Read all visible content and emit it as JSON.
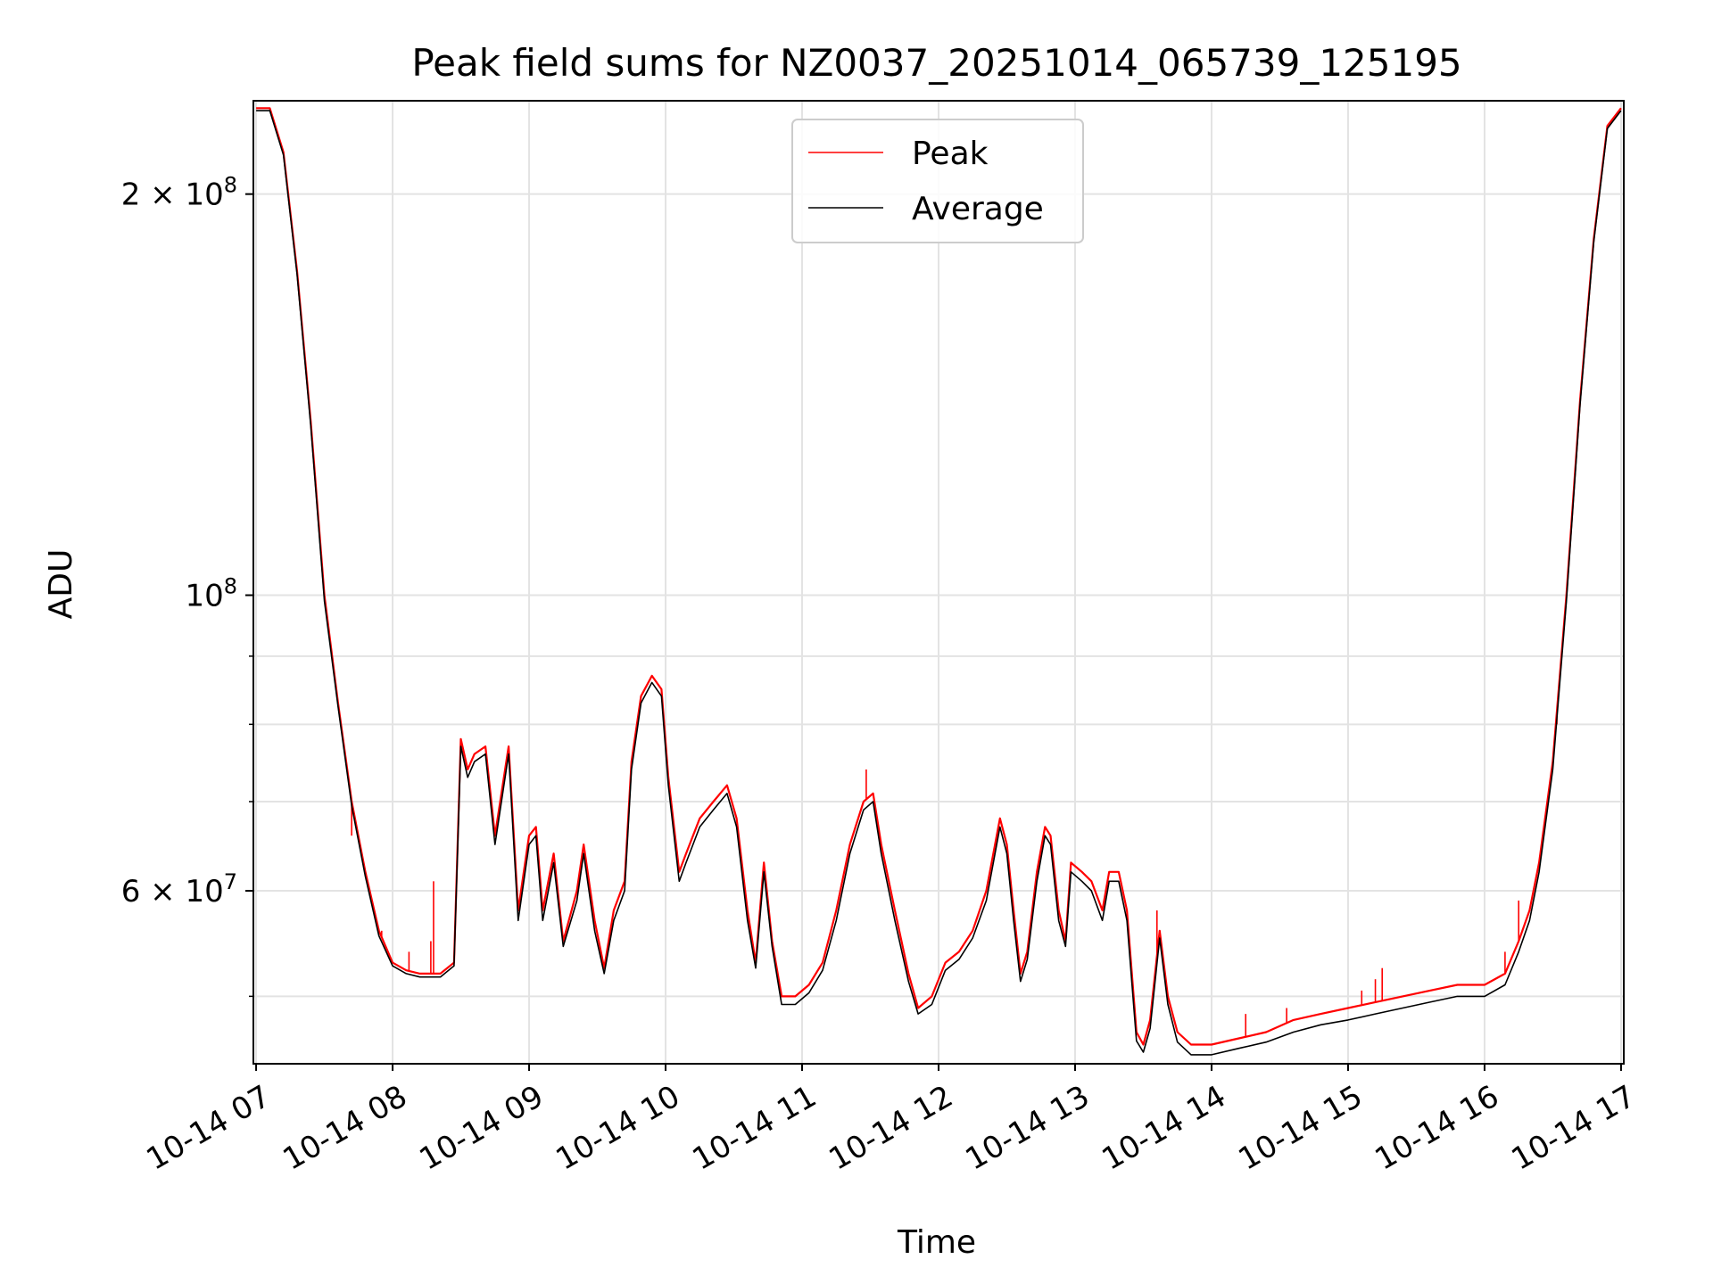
{
  "chart_data": {
    "type": "line",
    "title": "Peak field sums for NZ0037_20251014_065739_125195",
    "xlabel": "Time",
    "ylabel": "ADU",
    "yscale": "log",
    "ylim": [
      44500000,
      235000000
    ],
    "xlim": [
      6.98,
      17.02
    ],
    "grid": true,
    "legend_position": "upper-center",
    "x_ticks": [
      {
        "value": 7,
        "label": "10-14 07"
      },
      {
        "value": 8,
        "label": "10-14 08"
      },
      {
        "value": 9,
        "label": "10-14 09"
      },
      {
        "value": 10,
        "label": "10-14 10"
      },
      {
        "value": 11,
        "label": "10-14 11"
      },
      {
        "value": 12,
        "label": "10-14 12"
      },
      {
        "value": 13,
        "label": "10-14 13"
      },
      {
        "value": 14,
        "label": "10-14 14"
      },
      {
        "value": 15,
        "label": "10-14 15"
      },
      {
        "value": 16,
        "label": "10-14 16"
      },
      {
        "value": 17,
        "label": "10-14 17"
      }
    ],
    "y_major_ticks": [
      {
        "value": 60000000,
        "mant": "6",
        "exp": "7",
        "times": true
      },
      {
        "value": 100000000,
        "mant": "10",
        "exp": "8",
        "times": false
      },
      {
        "value": 200000000,
        "mant": "2",
        "exp": "8",
        "times": true
      }
    ],
    "y_minor_ticks": [
      50000000,
      70000000,
      80000000,
      90000000
    ],
    "times_symbol": "×",
    "series": [
      {
        "name": "Peak",
        "color": "#ff0000",
        "points": [
          [
            7.0,
            232000000
          ],
          [
            7.1,
            232000000
          ],
          [
            7.2,
            215000000
          ],
          [
            7.3,
            175000000
          ],
          [
            7.4,
            135000000
          ],
          [
            7.5,
            100000000
          ],
          [
            7.6,
            83000000
          ],
          [
            7.7,
            70000000
          ],
          [
            7.8,
            62000000
          ],
          [
            7.9,
            56000000
          ],
          [
            8.0,
            53000000
          ],
          [
            8.1,
            52300000
          ],
          [
            8.2,
            52000000
          ],
          [
            8.35,
            52000000
          ],
          [
            8.45,
            53000000
          ],
          [
            8.5,
            78000000
          ],
          [
            8.55,
            74000000
          ],
          [
            8.6,
            76000000
          ],
          [
            8.68,
            77000000
          ],
          [
            8.75,
            66000000
          ],
          [
            8.85,
            77000000
          ],
          [
            8.92,
            58000000
          ],
          [
            9.0,
            66000000
          ],
          [
            9.05,
            67000000
          ],
          [
            9.1,
            58000000
          ],
          [
            9.18,
            64000000
          ],
          [
            9.25,
            55000000
          ],
          [
            9.35,
            60000000
          ],
          [
            9.4,
            65000000
          ],
          [
            9.48,
            57000000
          ],
          [
            9.55,
            52500000
          ],
          [
            9.62,
            58000000
          ],
          [
            9.7,
            61000000
          ],
          [
            9.75,
            75000000
          ],
          [
            9.82,
            84000000
          ],
          [
            9.9,
            87000000
          ],
          [
            9.97,
            85000000
          ],
          [
            10.02,
            73000000
          ],
          [
            10.1,
            62000000
          ],
          [
            10.15,
            64000000
          ],
          [
            10.25,
            68000000
          ],
          [
            10.35,
            70000000
          ],
          [
            10.45,
            72000000
          ],
          [
            10.52,
            68000000
          ],
          [
            10.6,
            58000000
          ],
          [
            10.66,
            53000000
          ],
          [
            10.72,
            63000000
          ],
          [
            10.78,
            55000000
          ],
          [
            10.85,
            50000000
          ],
          [
            10.95,
            50000000
          ],
          [
            11.05,
            51000000
          ],
          [
            11.15,
            53000000
          ],
          [
            11.25,
            58000000
          ],
          [
            11.35,
            65000000
          ],
          [
            11.45,
            70000000
          ],
          [
            11.52,
            71000000
          ],
          [
            11.58,
            65000000
          ],
          [
            11.68,
            58000000
          ],
          [
            11.78,
            52000000
          ],
          [
            11.85,
            49000000
          ],
          [
            11.95,
            50000000
          ],
          [
            12.05,
            53000000
          ],
          [
            12.15,
            54000000
          ],
          [
            12.25,
            56000000
          ],
          [
            12.35,
            60000000
          ],
          [
            12.45,
            68000000
          ],
          [
            12.5,
            65000000
          ],
          [
            12.55,
            58000000
          ],
          [
            12.6,
            52000000
          ],
          [
            12.65,
            54000000
          ],
          [
            12.72,
            62000000
          ],
          [
            12.78,
            67000000
          ],
          [
            12.82,
            66000000
          ],
          [
            12.88,
            58000000
          ],
          [
            12.93,
            55000000
          ],
          [
            12.97,
            63000000
          ],
          [
            13.05,
            62000000
          ],
          [
            13.12,
            61000000
          ],
          [
            13.2,
            58000000
          ],
          [
            13.25,
            62000000
          ],
          [
            13.32,
            62000000
          ],
          [
            13.38,
            58000000
          ],
          [
            13.45,
            47000000
          ],
          [
            13.5,
            46000000
          ],
          [
            13.55,
            48000000
          ],
          [
            13.62,
            56000000
          ],
          [
            13.68,
            50000000
          ],
          [
            13.75,
            47000000
          ],
          [
            13.85,
            46000000
          ],
          [
            14.0,
            46000000
          ],
          [
            14.2,
            46500000
          ],
          [
            14.4,
            47000000
          ],
          [
            14.6,
            48000000
          ],
          [
            14.8,
            48500000
          ],
          [
            15.0,
            49000000
          ],
          [
            15.2,
            49500000
          ],
          [
            15.4,
            50000000
          ],
          [
            15.6,
            50500000
          ],
          [
            15.8,
            51000000
          ],
          [
            16.0,
            51000000
          ],
          [
            16.15,
            52000000
          ],
          [
            16.25,
            55000000
          ],
          [
            16.33,
            58000000
          ],
          [
            16.4,
            63000000
          ],
          [
            16.5,
            75000000
          ],
          [
            16.6,
            100000000
          ],
          [
            16.7,
            140000000
          ],
          [
            16.8,
            185000000
          ],
          [
            16.9,
            225000000
          ],
          [
            17.0,
            232000000
          ]
        ],
        "spikes": [
          [
            7.7,
            66000000
          ],
          [
            7.92,
            56000000
          ],
          [
            8.12,
            54000000
          ],
          [
            8.28,
            55000000
          ],
          [
            8.3,
            61000000
          ],
          [
            11.47,
            74000000
          ],
          [
            13.6,
            58000000
          ],
          [
            14.25,
            48500000
          ],
          [
            14.55,
            49000000
          ],
          [
            15.1,
            50500000
          ],
          [
            15.2,
            51500000
          ],
          [
            15.25,
            52500000
          ],
          [
            16.15,
            54000000
          ],
          [
            16.25,
            59000000
          ],
          [
            16.53,
            80000000
          ]
        ]
      },
      {
        "name": "Average",
        "color": "#000000",
        "points": [
          [
            7.0,
            231000000
          ],
          [
            7.1,
            231000000
          ],
          [
            7.2,
            214000000
          ],
          [
            7.3,
            174000000
          ],
          [
            7.4,
            134000000
          ],
          [
            7.5,
            99000000
          ],
          [
            7.6,
            82500000
          ],
          [
            7.7,
            69500000
          ],
          [
            7.8,
            61500000
          ],
          [
            7.9,
            55500000
          ],
          [
            8.0,
            52700000
          ],
          [
            8.1,
            52000000
          ],
          [
            8.2,
            51700000
          ],
          [
            8.35,
            51700000
          ],
          [
            8.45,
            52700000
          ],
          [
            8.5,
            77000000
          ],
          [
            8.55,
            73000000
          ],
          [
            8.6,
            75000000
          ],
          [
            8.68,
            76000000
          ],
          [
            8.75,
            65000000
          ],
          [
            8.85,
            76000000
          ],
          [
            8.92,
            57000000
          ],
          [
            9.0,
            65000000
          ],
          [
            9.05,
            66000000
          ],
          [
            9.1,
            57000000
          ],
          [
            9.18,
            63000000
          ],
          [
            9.25,
            54500000
          ],
          [
            9.35,
            59000000
          ],
          [
            9.4,
            64000000
          ],
          [
            9.48,
            56000000
          ],
          [
            9.55,
            52000000
          ],
          [
            9.62,
            57000000
          ],
          [
            9.7,
            60000000
          ],
          [
            9.75,
            74000000
          ],
          [
            9.82,
            83000000
          ],
          [
            9.9,
            86000000
          ],
          [
            9.97,
            84000000
          ],
          [
            10.02,
            72000000
          ],
          [
            10.1,
            61000000
          ],
          [
            10.15,
            63000000
          ],
          [
            10.25,
            67000000
          ],
          [
            10.35,
            69000000
          ],
          [
            10.45,
            71000000
          ],
          [
            10.52,
            67000000
          ],
          [
            10.6,
            57000000
          ],
          [
            10.66,
            52500000
          ],
          [
            10.72,
            62000000
          ],
          [
            10.78,
            54500000
          ],
          [
            10.85,
            49300000
          ],
          [
            10.95,
            49300000
          ],
          [
            11.05,
            50300000
          ],
          [
            11.15,
            52300000
          ],
          [
            11.25,
            57000000
          ],
          [
            11.35,
            64000000
          ],
          [
            11.45,
            69000000
          ],
          [
            11.52,
            70000000
          ],
          [
            11.58,
            64000000
          ],
          [
            11.68,
            57000000
          ],
          [
            11.78,
            51300000
          ],
          [
            11.85,
            48500000
          ],
          [
            11.95,
            49300000
          ],
          [
            12.05,
            52300000
          ],
          [
            12.15,
            53300000
          ],
          [
            12.25,
            55300000
          ],
          [
            12.35,
            59000000
          ],
          [
            12.45,
            67000000
          ],
          [
            12.5,
            64000000
          ],
          [
            12.55,
            57000000
          ],
          [
            12.6,
            51300000
          ],
          [
            12.65,
            53300000
          ],
          [
            12.72,
            61000000
          ],
          [
            12.78,
            66000000
          ],
          [
            12.82,
            65000000
          ],
          [
            12.88,
            57000000
          ],
          [
            12.93,
            54500000
          ],
          [
            12.97,
            62000000
          ],
          [
            13.05,
            61000000
          ],
          [
            13.12,
            60000000
          ],
          [
            13.2,
            57000000
          ],
          [
            13.25,
            61000000
          ],
          [
            13.32,
            61000000
          ],
          [
            13.38,
            57000000
          ],
          [
            13.45,
            46300000
          ],
          [
            13.5,
            45400000
          ],
          [
            13.55,
            47300000
          ],
          [
            13.62,
            55300000
          ],
          [
            13.68,
            49300000
          ],
          [
            13.75,
            46200000
          ],
          [
            13.85,
            45200000
          ],
          [
            14.0,
            45200000
          ],
          [
            14.2,
            45700000
          ],
          [
            14.4,
            46200000
          ],
          [
            14.6,
            47000000
          ],
          [
            14.8,
            47600000
          ],
          [
            15.0,
            48000000
          ],
          [
            15.2,
            48500000
          ],
          [
            15.4,
            49000000
          ],
          [
            15.6,
            49500000
          ],
          [
            15.8,
            50000000
          ],
          [
            16.0,
            50000000
          ],
          [
            16.15,
            51000000
          ],
          [
            16.25,
            54000000
          ],
          [
            16.33,
            57000000
          ],
          [
            16.4,
            62000000
          ],
          [
            16.5,
            74000000
          ],
          [
            16.6,
            99000000
          ],
          [
            16.7,
            139000000
          ],
          [
            16.8,
            184000000
          ],
          [
            16.9,
            224000000
          ],
          [
            17.0,
            231000000
          ]
        ]
      }
    ]
  }
}
